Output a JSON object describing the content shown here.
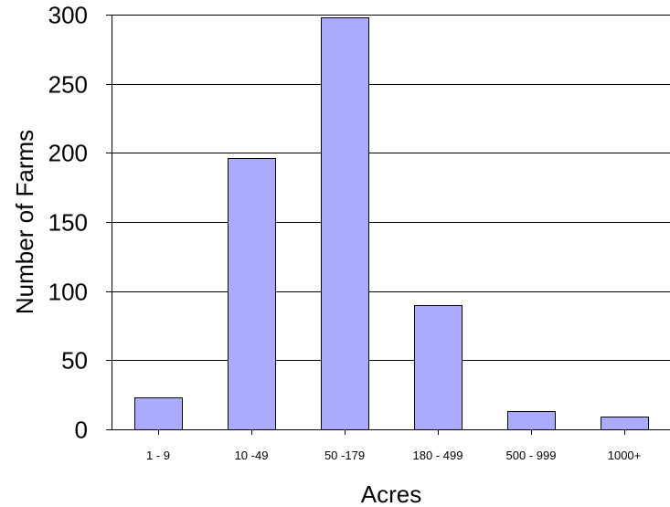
{
  "chart_data": {
    "type": "bar",
    "title": "",
    "xlabel": "Acres",
    "ylabel": "Number of Farms",
    "categories": [
      "1 - 9",
      "10 -49",
      "50 -179",
      "180 - 499",
      "500 - 999",
      "1000+"
    ],
    "values": [
      23,
      196,
      298,
      90,
      13,
      9
    ],
    "ylim": [
      0,
      300
    ],
    "yticks": [
      "0",
      "50",
      "100",
      "150",
      "200",
      "250",
      "300"
    ],
    "grid": "horizontal",
    "bar_color": "#aaaaff",
    "legend": "none"
  }
}
